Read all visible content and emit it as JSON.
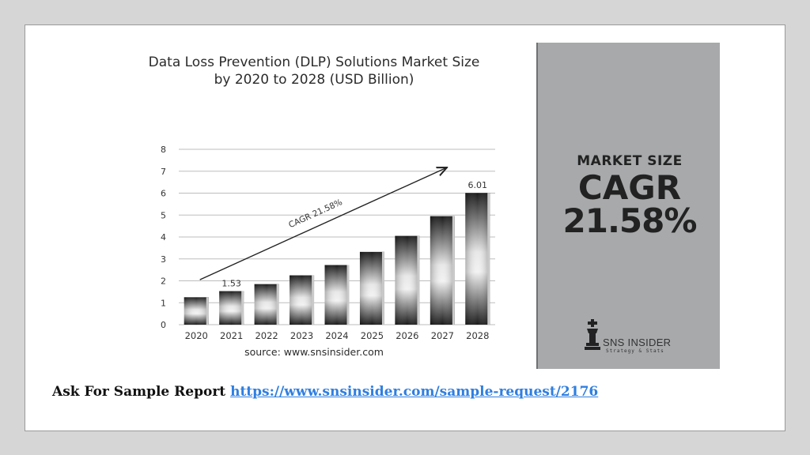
{
  "chart_data": {
    "type": "bar",
    "title": [
      "Data Loss Prevention (DLP) Solutions Market Size",
      "by 2020 to 2028 (USD Billion)"
    ],
    "categories": [
      "2020",
      "2021",
      "2022",
      "2023",
      "2024",
      "2025",
      "2026",
      "2027",
      "2028"
    ],
    "values": [
      1.25,
      1.53,
      1.85,
      2.25,
      2.72,
      3.32,
      4.05,
      4.95,
      6.01
    ],
    "data_labels": {
      "2021": "1.53",
      "2028": "6.01"
    },
    "ylim": [
      0,
      8
    ],
    "yticks": [
      "0",
      "1",
      "2",
      "3",
      "4",
      "5",
      "6",
      "7",
      "8"
    ],
    "grid": true,
    "annotation": "CAGR 21.58%",
    "source": "source: www.snsinsider.com"
  },
  "side_panel": {
    "label": "MARKET SIZE",
    "cagr_label": "CAGR",
    "cagr_value": "21.58%",
    "logo_name": "SNS INSIDER",
    "logo_tagline": "Strategy & Stats"
  },
  "footer": {
    "text": "Ask For Sample Report",
    "link": "https://www.snsinsider.com/sample-request/2176"
  },
  "colors": {
    "panel": "#a7a9ab",
    "link": "#2f7fe0",
    "bar_dark": "#1a1a1a",
    "bar_light": "#e8e8e8"
  }
}
